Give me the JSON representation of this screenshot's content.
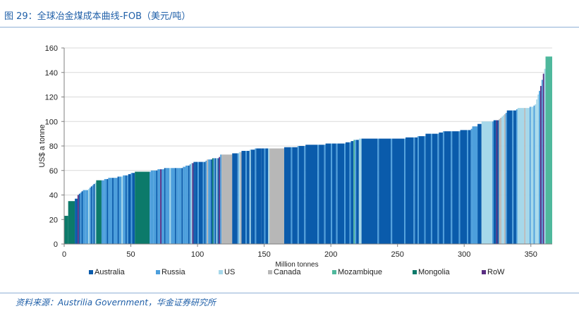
{
  "figure_title": "图 29：全球冶金煤成本曲线-FOB（美元/吨）",
  "source": "资料来源：Austrilia Government，华金证券研究所",
  "colors": {
    "Australia": "#0a5bab",
    "Russia": "#4d9fdc",
    "US": "#a6d8ea",
    "Canada": "#b7b7b7",
    "Mozambique": "#4fb89c",
    "Mongolia": "#0c7a6a",
    "RoW": "#5a2d82"
  },
  "chart_data": {
    "type": "bar",
    "title": "",
    "xlabel": "Million tonnes",
    "ylabel": "US$ a tonne",
    "xlim": [
      0,
      366
    ],
    "ylim": [
      0,
      160
    ],
    "xticks": [
      0,
      50,
      100,
      150,
      200,
      250,
      300,
      350
    ],
    "yticks": [
      0,
      20,
      40,
      60,
      80,
      100,
      120,
      140,
      160
    ],
    "grid": "horizontal",
    "legend_position": "bottom",
    "legend": [
      "Australia",
      "Russia",
      "US",
      "Canada",
      "Mozambique",
      "Mongolia",
      "RoW"
    ],
    "segments": [
      {
        "x0": 0,
        "x1": 3,
        "value": 23,
        "country": "Mongolia"
      },
      {
        "x0": 3,
        "x1": 8,
        "value": 35,
        "country": "Mongolia"
      },
      {
        "x0": 8,
        "x1": 10,
        "value": 37,
        "country": "Australia"
      },
      {
        "x0": 10,
        "x1": 11,
        "value": 40,
        "country": "RoW"
      },
      {
        "x0": 11,
        "x1": 12,
        "value": 41,
        "country": "Australia"
      },
      {
        "x0": 12,
        "x1": 13,
        "value": 42,
        "country": "Russia"
      },
      {
        "x0": 13,
        "x1": 14,
        "value": 43,
        "country": "Australia"
      },
      {
        "x0": 14,
        "x1": 16,
        "value": 44,
        "country": "Russia"
      },
      {
        "x0": 16,
        "x1": 18,
        "value": 44,
        "country": "Russia"
      },
      {
        "x0": 18,
        "x1": 19,
        "value": 45,
        "country": "US"
      },
      {
        "x0": 19,
        "x1": 20,
        "value": 46,
        "country": "Russia"
      },
      {
        "x0": 20,
        "x1": 21,
        "value": 47,
        "country": "Australia"
      },
      {
        "x0": 21,
        "x1": 22,
        "value": 48,
        "country": "Russia"
      },
      {
        "x0": 22,
        "x1": 23,
        "value": 49,
        "country": "Australia"
      },
      {
        "x0": 23,
        "x1": 24,
        "value": 50,
        "country": "US"
      },
      {
        "x0": 24,
        "x1": 28,
        "value": 52,
        "country": "Mongolia"
      },
      {
        "x0": 28,
        "x1": 30,
        "value": 52,
        "country": "Russia"
      },
      {
        "x0": 30,
        "x1": 32,
        "value": 53,
        "country": "Russia"
      },
      {
        "x0": 32,
        "x1": 33,
        "value": 53,
        "country": "Australia"
      },
      {
        "x0": 33,
        "x1": 36,
        "value": 54,
        "country": "Russia"
      },
      {
        "x0": 36,
        "x1": 37,
        "value": 54,
        "country": "Australia"
      },
      {
        "x0": 37,
        "x1": 40,
        "value": 54,
        "country": "Russia"
      },
      {
        "x0": 40,
        "x1": 41,
        "value": 55,
        "country": "Australia"
      },
      {
        "x0": 41,
        "x1": 43,
        "value": 55,
        "country": "Russia"
      },
      {
        "x0": 43,
        "x1": 44,
        "value": 55,
        "country": "US"
      },
      {
        "x0": 44,
        "x1": 46,
        "value": 56,
        "country": "Russia"
      },
      {
        "x0": 46,
        "x1": 47,
        "value": 56,
        "country": "Australia"
      },
      {
        "x0": 47,
        "x1": 48,
        "value": 56,
        "country": "Russia"
      },
      {
        "x0": 48,
        "x1": 50,
        "value": 57,
        "country": "Australia"
      },
      {
        "x0": 50,
        "x1": 51,
        "value": 58,
        "country": "Russia"
      },
      {
        "x0": 51,
        "x1": 53,
        "value": 58,
        "country": "Australia"
      },
      {
        "x0": 53,
        "x1": 64,
        "value": 59,
        "country": "Mongolia"
      },
      {
        "x0": 64,
        "x1": 65,
        "value": 59,
        "country": "Russia"
      },
      {
        "x0": 65,
        "x1": 67,
        "value": 60,
        "country": "Russia"
      },
      {
        "x0": 67,
        "x1": 69,
        "value": 60,
        "country": "Russia"
      },
      {
        "x0": 69,
        "x1": 70,
        "value": 60,
        "country": "Australia"
      },
      {
        "x0": 70,
        "x1": 72,
        "value": 61,
        "country": "Russia"
      },
      {
        "x0": 72,
        "x1": 73,
        "value": 61,
        "country": "RoW"
      },
      {
        "x0": 73,
        "x1": 75,
        "value": 61,
        "country": "Russia"
      },
      {
        "x0": 75,
        "x1": 76,
        "value": 62,
        "country": "Australia"
      },
      {
        "x0": 76,
        "x1": 79,
        "value": 62,
        "country": "Russia"
      },
      {
        "x0": 79,
        "x1": 80,
        "value": 62,
        "country": "US"
      },
      {
        "x0": 80,
        "x1": 83,
        "value": 62,
        "country": "Russia"
      },
      {
        "x0": 83,
        "x1": 84,
        "value": 62,
        "country": "Australia"
      },
      {
        "x0": 84,
        "x1": 86,
        "value": 62,
        "country": "Russia"
      },
      {
        "x0": 86,
        "x1": 88,
        "value": 62,
        "country": "Russia"
      },
      {
        "x0": 88,
        "x1": 89,
        "value": 62,
        "country": "Australia"
      },
      {
        "x0": 89,
        "x1": 91,
        "value": 63,
        "country": "Russia"
      },
      {
        "x0": 91,
        "x1": 93,
        "value": 64,
        "country": "Russia"
      },
      {
        "x0": 93,
        "x1": 94,
        "value": 64,
        "country": "Australia"
      },
      {
        "x0": 94,
        "x1": 95,
        "value": 65,
        "country": "Russia"
      },
      {
        "x0": 95,
        "x1": 96,
        "value": 66,
        "country": "US"
      },
      {
        "x0": 96,
        "x1": 97,
        "value": 66,
        "country": "RoW"
      },
      {
        "x0": 97,
        "x1": 98,
        "value": 67,
        "country": "Australia"
      },
      {
        "x0": 98,
        "x1": 100,
        "value": 67,
        "country": "Australia"
      },
      {
        "x0": 100,
        "x1": 101,
        "value": 67,
        "country": "Russia"
      },
      {
        "x0": 101,
        "x1": 104,
        "value": 67,
        "country": "Australia"
      },
      {
        "x0": 104,
        "x1": 105,
        "value": 67,
        "country": "Russia"
      },
      {
        "x0": 105,
        "x1": 106,
        "value": 67,
        "country": "Australia"
      },
      {
        "x0": 106,
        "x1": 107,
        "value": 68,
        "country": "Russia"
      },
      {
        "x0": 107,
        "x1": 108,
        "value": 69,
        "country": "Canada"
      },
      {
        "x0": 108,
        "x1": 110,
        "value": 69,
        "country": "Russia"
      },
      {
        "x0": 110,
        "x1": 111,
        "value": 69,
        "country": "Australia"
      },
      {
        "x0": 111,
        "x1": 112,
        "value": 70,
        "country": "Mongolia"
      },
      {
        "x0": 112,
        "x1": 113,
        "value": 70,
        "country": "Russia"
      },
      {
        "x0": 113,
        "x1": 114,
        "value": 70,
        "country": "Australia"
      },
      {
        "x0": 114,
        "x1": 115,
        "value": 70,
        "country": "US"
      },
      {
        "x0": 115,
        "x1": 116,
        "value": 70,
        "country": "Australia"
      },
      {
        "x0": 116,
        "x1": 117,
        "value": 71,
        "country": "RoW"
      },
      {
        "x0": 117,
        "x1": 118,
        "value": 73,
        "country": "Russia"
      },
      {
        "x0": 118,
        "x1": 126,
        "value": 73,
        "country": "Canada"
      },
      {
        "x0": 126,
        "x1": 130,
        "value": 74,
        "country": "Australia"
      },
      {
        "x0": 130,
        "x1": 131,
        "value": 74,
        "country": "Russia"
      },
      {
        "x0": 131,
        "x1": 132,
        "value": 75,
        "country": "US"
      },
      {
        "x0": 132,
        "x1": 133,
        "value": 75,
        "country": "Canada"
      },
      {
        "x0": 133,
        "x1": 136,
        "value": 76,
        "country": "Australia"
      },
      {
        "x0": 136,
        "x1": 137,
        "value": 76,
        "country": "Russia"
      },
      {
        "x0": 137,
        "x1": 139,
        "value": 76,
        "country": "Australia"
      },
      {
        "x0": 139,
        "x1": 140,
        "value": 77,
        "country": "US"
      },
      {
        "x0": 140,
        "x1": 141,
        "value": 77,
        "country": "Australia"
      },
      {
        "x0": 141,
        "x1": 143,
        "value": 77,
        "country": "Australia"
      },
      {
        "x0": 143,
        "x1": 144,
        "value": 78,
        "country": "Russia"
      },
      {
        "x0": 144,
        "x1": 148,
        "value": 78,
        "country": "Australia"
      },
      {
        "x0": 148,
        "x1": 150,
        "value": 78,
        "country": "Australia"
      },
      {
        "x0": 150,
        "x1": 151,
        "value": 78,
        "country": "Russia"
      },
      {
        "x0": 151,
        "x1": 153,
        "value": 78,
        "country": "Australia"
      },
      {
        "x0": 153,
        "x1": 154,
        "value": 78,
        "country": "US"
      },
      {
        "x0": 154,
        "x1": 165,
        "value": 78,
        "country": "Canada"
      },
      {
        "x0": 165,
        "x1": 170,
        "value": 79,
        "country": "Australia"
      },
      {
        "x0": 170,
        "x1": 171,
        "value": 79,
        "country": "Russia"
      },
      {
        "x0": 171,
        "x1": 175,
        "value": 79,
        "country": "Australia"
      },
      {
        "x0": 175,
        "x1": 176,
        "value": 80,
        "country": "Russia"
      },
      {
        "x0": 176,
        "x1": 180,
        "value": 80,
        "country": "Australia"
      },
      {
        "x0": 180,
        "x1": 181,
        "value": 80,
        "country": "Russia"
      },
      {
        "x0": 181,
        "x1": 190,
        "value": 81,
        "country": "Australia"
      },
      {
        "x0": 190,
        "x1": 191,
        "value": 81,
        "country": "Russia"
      },
      {
        "x0": 191,
        "x1": 195,
        "value": 81,
        "country": "Australia"
      },
      {
        "x0": 195,
        "x1": 196,
        "value": 81,
        "country": "Russia"
      },
      {
        "x0": 196,
        "x1": 200,
        "value": 82,
        "country": "Australia"
      },
      {
        "x0": 200,
        "x1": 201,
        "value": 82,
        "country": "Russia"
      },
      {
        "x0": 201,
        "x1": 204,
        "value": 82,
        "country": "Australia"
      },
      {
        "x0": 204,
        "x1": 205,
        "value": 82,
        "country": "Russia"
      },
      {
        "x0": 205,
        "x1": 210,
        "value": 82,
        "country": "Australia"
      },
      {
        "x0": 210,
        "x1": 211,
        "value": 82,
        "country": "Russia"
      },
      {
        "x0": 211,
        "x1": 214,
        "value": 83,
        "country": "Australia"
      },
      {
        "x0": 214,
        "x1": 215,
        "value": 83,
        "country": "Russia"
      },
      {
        "x0": 215,
        "x1": 217,
        "value": 84,
        "country": "Australia"
      },
      {
        "x0": 217,
        "x1": 218,
        "value": 85,
        "country": "Mozambique"
      },
      {
        "x0": 218,
        "x1": 219,
        "value": 85,
        "country": "Russia"
      },
      {
        "x0": 219,
        "x1": 221,
        "value": 85,
        "country": "Australia"
      },
      {
        "x0": 221,
        "x1": 223,
        "value": 86,
        "country": "US"
      },
      {
        "x0": 223,
        "x1": 235,
        "value": 86,
        "country": "Australia"
      },
      {
        "x0": 235,
        "x1": 236,
        "value": 86,
        "country": "Russia"
      },
      {
        "x0": 236,
        "x1": 245,
        "value": 86,
        "country": "Australia"
      },
      {
        "x0": 245,
        "x1": 246,
        "value": 86,
        "country": "Russia"
      },
      {
        "x0": 246,
        "x1": 255,
        "value": 86,
        "country": "Australia"
      },
      {
        "x0": 255,
        "x1": 256,
        "value": 86,
        "country": "Russia"
      },
      {
        "x0": 256,
        "x1": 262,
        "value": 87,
        "country": "Australia"
      },
      {
        "x0": 262,
        "x1": 263,
        "value": 87,
        "country": "Russia"
      },
      {
        "x0": 263,
        "x1": 265,
        "value": 87,
        "country": "Australia"
      },
      {
        "x0": 265,
        "x1": 266,
        "value": 88,
        "country": "Russia"
      },
      {
        "x0": 266,
        "x1": 270,
        "value": 88,
        "country": "Australia"
      },
      {
        "x0": 270,
        "x1": 271,
        "value": 88,
        "country": "Russia"
      },
      {
        "x0": 271,
        "x1": 275,
        "value": 90,
        "country": "Australia"
      },
      {
        "x0": 275,
        "x1": 276,
        "value": 90,
        "country": "Russia"
      },
      {
        "x0": 276,
        "x1": 280,
        "value": 90,
        "country": "Australia"
      },
      {
        "x0": 280,
        "x1": 281,
        "value": 90,
        "country": "Russia"
      },
      {
        "x0": 281,
        "x1": 284,
        "value": 91,
        "country": "Australia"
      },
      {
        "x0": 284,
        "x1": 285,
        "value": 92,
        "country": "Russia"
      },
      {
        "x0": 285,
        "x1": 290,
        "value": 92,
        "country": "Australia"
      },
      {
        "x0": 290,
        "x1": 291,
        "value": 92,
        "country": "Russia"
      },
      {
        "x0": 291,
        "x1": 296,
        "value": 92,
        "country": "Australia"
      },
      {
        "x0": 296,
        "x1": 297,
        "value": 92,
        "country": "Russia"
      },
      {
        "x0": 297,
        "x1": 302,
        "value": 93,
        "country": "Australia"
      },
      {
        "x0": 302,
        "x1": 303,
        "value": 93,
        "country": "Russia"
      },
      {
        "x0": 303,
        "x1": 305,
        "value": 93,
        "country": "Australia"
      },
      {
        "x0": 305,
        "x1": 306,
        "value": 94,
        "country": "Russia"
      },
      {
        "x0": 306,
        "x1": 310,
        "value": 96,
        "country": "Russia"
      },
      {
        "x0": 310,
        "x1": 313,
        "value": 98,
        "country": "Australia"
      },
      {
        "x0": 313,
        "x1": 321,
        "value": 100,
        "country": "US"
      },
      {
        "x0": 321,
        "x1": 322,
        "value": 100,
        "country": "Russia"
      },
      {
        "x0": 322,
        "x1": 324,
        "value": 101,
        "country": "Australia"
      },
      {
        "x0": 324,
        "x1": 325,
        "value": 101,
        "country": "RoW"
      },
      {
        "x0": 325,
        "x1": 326,
        "value": 101,
        "country": "Australia"
      },
      {
        "x0": 326,
        "x1": 327,
        "value": 102,
        "country": "Canada"
      },
      {
        "x0": 327,
        "x1": 328,
        "value": 103,
        "country": "Canada"
      },
      {
        "x0": 328,
        "x1": 329,
        "value": 104,
        "country": "US"
      },
      {
        "x0": 329,
        "x1": 330,
        "value": 105,
        "country": "US"
      },
      {
        "x0": 330,
        "x1": 331,
        "value": 106,
        "country": "Canada"
      },
      {
        "x0": 331,
        "x1": 332,
        "value": 107,
        "country": "Russia"
      },
      {
        "x0": 332,
        "x1": 336,
        "value": 109,
        "country": "Australia"
      },
      {
        "x0": 336,
        "x1": 337,
        "value": 109,
        "country": "Russia"
      },
      {
        "x0": 337,
        "x1": 339,
        "value": 109,
        "country": "Australia"
      },
      {
        "x0": 339,
        "x1": 340,
        "value": 110,
        "country": "Russia"
      },
      {
        "x0": 340,
        "x1": 345,
        "value": 111,
        "country": "US"
      },
      {
        "x0": 345,
        "x1": 346,
        "value": 111,
        "country": "Canada"
      },
      {
        "x0": 346,
        "x1": 349,
        "value": 111,
        "country": "US"
      },
      {
        "x0": 349,
        "x1": 350,
        "value": 112,
        "country": "Russia"
      },
      {
        "x0": 350,
        "x1": 352,
        "value": 112,
        "country": "US"
      },
      {
        "x0": 352,
        "x1": 353,
        "value": 113,
        "country": "Russia"
      },
      {
        "x0": 353,
        "x1": 354,
        "value": 114,
        "country": "US"
      },
      {
        "x0": 354,
        "x1": 355,
        "value": 118,
        "country": "US"
      },
      {
        "x0": 355,
        "x1": 356,
        "value": 122,
        "country": "US"
      },
      {
        "x0": 356,
        "x1": 357,
        "value": 125,
        "country": "Russia"
      },
      {
        "x0": 357,
        "x1": 358,
        "value": 129,
        "country": "RoW"
      },
      {
        "x0": 358,
        "x1": 359,
        "value": 134,
        "country": "Russia"
      },
      {
        "x0": 359,
        "x1": 360,
        "value": 139,
        "country": "RoW"
      },
      {
        "x0": 360,
        "x1": 361,
        "value": 143,
        "country": "US"
      },
      {
        "x0": 361,
        "x1": 366,
        "value": 153,
        "country": "Mozambique"
      }
    ]
  }
}
